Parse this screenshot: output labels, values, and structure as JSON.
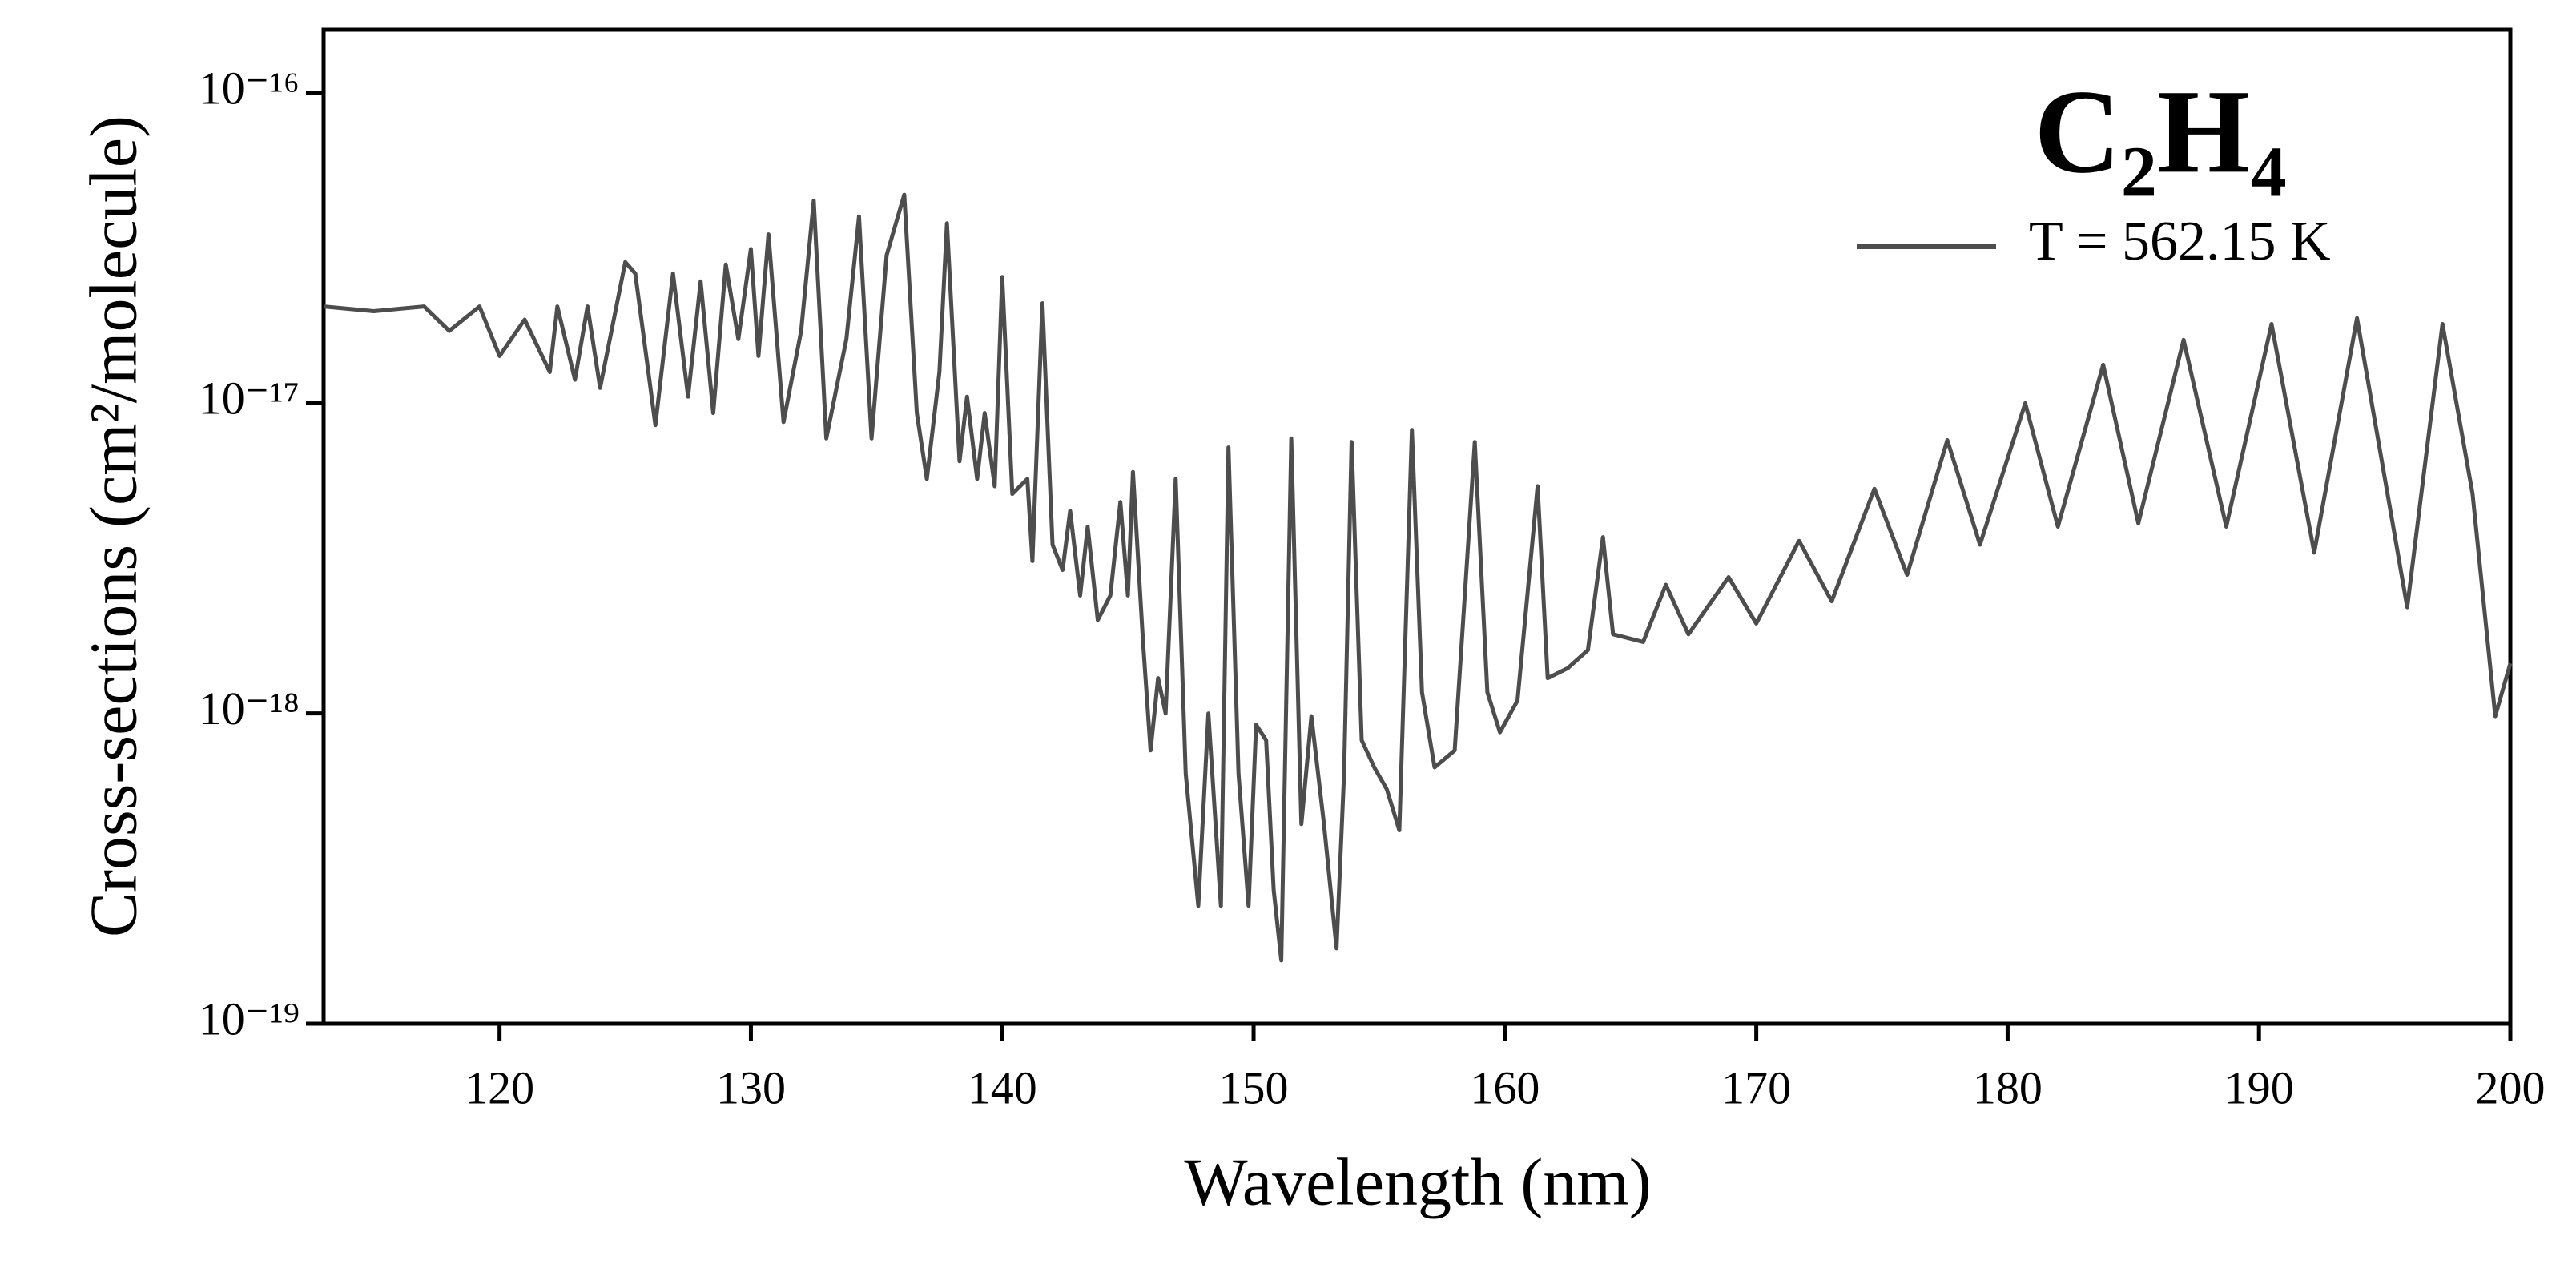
{
  "chart_data": {
    "type": "line",
    "title": "C₂H₄",
    "x_label": "Wavelength (nm)",
    "y_label": "Cross-sections (cm²/molecule)",
    "log_y": true,
    "legend": "upper right",
    "xlim": [
      113,
      200
    ],
    "xticks": [
      120,
      130,
      140,
      150,
      160,
      170,
      180,
      190,
      200
    ],
    "ylim": [
      1e-19,
      1.6e-16
    ],
    "yticks": [
      {
        "value": 1e-19,
        "label": "10⁻¹⁹"
      },
      {
        "value": 1e-18,
        "label": "10⁻¹⁸"
      },
      {
        "value": 1e-17,
        "label": "10⁻¹⁷"
      },
      {
        "value": 1e-16,
        "label": "10⁻¹⁶"
      }
    ],
    "x": [
      113,
      115,
      117,
      118,
      119.2,
      120,
      121,
      122,
      122.3,
      123,
      123.5,
      124,
      125,
      125.4,
      126.2,
      126.9,
      127.5,
      128,
      128.5,
      129,
      129.5,
      130,
      130.3,
      130.7,
      131.3,
      132,
      132.5,
      133,
      133.8,
      134.3,
      134.8,
      135.4,
      136.1,
      136.6,
      137,
      137.5,
      137.8,
      138.3,
      138.6,
      139,
      139.3,
      139.7,
      140,
      140.4,
      141,
      141.2,
      141.6,
      142,
      142.4,
      142.7,
      143.1,
      143.4,
      143.8,
      144.3,
      144.7,
      145,
      145.2,
      145.6,
      145.9,
      146.2,
      146.5,
      146.9,
      147.3,
      147.8,
      148.2,
      148.7,
      149,
      149.4,
      149.8,
      150.1,
      150.5,
      150.8,
      151.1,
      151.5,
      151.9,
      152.3,
      152.8,
      153.3,
      153.6,
      153.9,
      154.3,
      154.8,
      155.3,
      155.8,
      156.3,
      156.7,
      157.2,
      158,
      158.8,
      159.3,
      159.8,
      160.5,
      161.3,
      161.7,
      162.5,
      163.3,
      163.9,
      164.3,
      165.5,
      166.4,
      167.3,
      168.9,
      170,
      171.7,
      173,
      174.7,
      176,
      177.6,
      178.9,
      180.7,
      182,
      183.8,
      185.2,
      187,
      188.7,
      190.5,
      192.2,
      193.9,
      195.9,
      197.3,
      198.5,
      199.4,
      200
    ],
    "series": [
      {
        "name": "T = 562.15 K",
        "color": "#4d4d4d",
        "values": [
          2.05e-17,
          1.98e-17,
          2.05e-17,
          1.71e-17,
          2.05e-17,
          1.42e-17,
          1.86e-17,
          1.26e-17,
          2.05e-17,
          1.19e-17,
          2.05e-17,
          1.12e-17,
          2.85e-17,
          2.62e-17,
          8.5e-18,
          2.62e-17,
          1.05e-17,
          2.47e-17,
          9.3e-18,
          2.8e-17,
          1.61e-17,
          3.14e-17,
          1.42e-17,
          3.5e-17,
          8.7e-18,
          1.71e-17,
          4.5e-17,
          7.7e-18,
          1.61e-17,
          4e-17,
          7.7e-18,
          3e-17,
          4.7e-17,
          9.3e-18,
          5.7e-18,
          1.26e-17,
          3.8e-17,
          6.5e-18,
          1.05e-17,
          5.7e-18,
          9.3e-18,
          5.4e-18,
          2.55e-17,
          5.1e-18,
          5.7e-18,
          3.1e-18,
          2.1e-17,
          3.5e-18,
          2.9e-18,
          4.5e-18,
          2.4e-18,
          4e-18,
          2e-18,
          2.4e-18,
          4.8e-18,
          2.4e-18,
          6e-18,
          1.7e-18,
          7.6e-19,
          1.3e-18,
          1e-18,
          5.7e-18,
          6.4e-19,
          2.4e-19,
          1e-18,
          2.4e-19,
          7.2e-18,
          6.4e-19,
          2.4e-19,
          9.2e-19,
          8.2e-19,
          2.7e-19,
          1.6e-19,
          7.7e-18,
          4.4e-19,
          9.8e-19,
          4.4e-19,
          1.75e-19,
          6.4e-19,
          7.5e-18,
          8.2e-19,
          6.7e-19,
          5.7e-19,
          4.2e-19,
          8.2e-18,
          1.17e-18,
          6.7e-19,
          7.6e-19,
          7.5e-18,
          1.17e-18,
          8.7e-19,
          1.1e-18,
          5.4e-18,
          1.3e-18,
          1.4e-18,
          1.6e-18,
          3.7e-18,
          1.8e-18,
          1.7e-18,
          2.6e-18,
          1.8e-18,
          2.75e-18,
          1.95e-18,
          3.6e-18,
          2.3e-18,
          5.3e-18,
          2.8e-18,
          7.6e-18,
          3.5e-18,
          1e-17,
          4e-18,
          1.33e-17,
          4.1e-18,
          1.6e-17,
          4e-18,
          1.8e-17,
          3.3e-18,
          1.88e-17,
          2.2e-18,
          1.8e-17,
          5.1e-18,
          9.8e-19,
          1.45e-18
        ]
      }
    ]
  }
}
